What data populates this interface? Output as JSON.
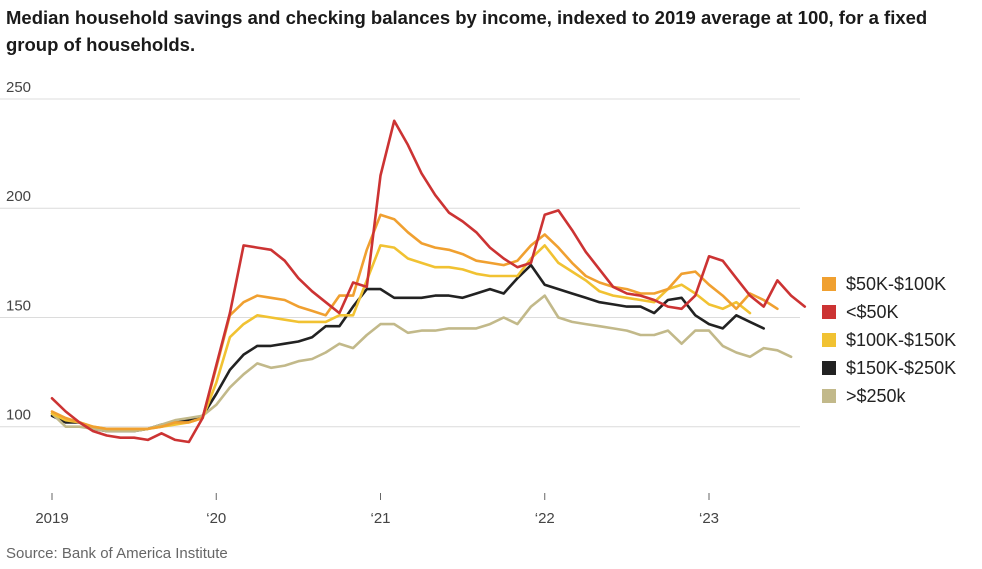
{
  "title": "Median household savings and checking balances by income, indexed to 2019 average at 100, for a fixed group of households.",
  "source": "Source: Bank of America Institute",
  "chart_data": {
    "type": "line",
    "title": "Median household savings and checking balances by income, indexed to 2019 average at 100, for a fixed group of households.",
    "xlabel": "",
    "ylabel": "",
    "xlim": [
      2019,
      2023.6
    ],
    "ylim": [
      77,
      250
    ],
    "yticks": [
      100,
      150,
      200,
      250
    ],
    "xticks": [
      {
        "value": 2019,
        "label": "2019"
      },
      {
        "value": 2020,
        "label": "‘20"
      },
      {
        "value": 2021,
        "label": "‘21"
      },
      {
        "value": 2022,
        "label": "‘22"
      },
      {
        "value": 2023,
        "label": "‘23"
      }
    ],
    "x_step": 0.08333,
    "grid": true,
    "legend_position": "right",
    "series": [
      {
        "name": "$150K-$250K",
        "color": "#222222",
        "values": [
          105,
          102,
          102,
          99,
          98,
          98,
          98,
          99,
          101,
          102,
          103,
          105,
          115,
          126,
          133,
          137,
          137,
          138,
          139,
          141,
          146,
          146,
          155,
          163,
          163,
          159,
          159,
          159,
          160,
          160,
          159,
          161,
          163,
          161,
          168,
          174,
          165,
          163,
          161,
          159,
          157,
          156,
          155,
          155,
          152,
          158,
          159,
          151,
          147,
          145,
          151,
          148,
          145
        ]
      },
      {
        "name": ">$250k",
        "color": "#c2b98a",
        "values": [
          106,
          100,
          100,
          99,
          98,
          98,
          98,
          99,
          101,
          103,
          104,
          105,
          110,
          118,
          124,
          129,
          127,
          128,
          130,
          131,
          134,
          138,
          136,
          142,
          147,
          147,
          143,
          144,
          144,
          145,
          145,
          145,
          147,
          150,
          147,
          155,
          160,
          150,
          148,
          147,
          146,
          145,
          144,
          142,
          142,
          144,
          138,
          144,
          144,
          137,
          134,
          132,
          136,
          135,
          132
        ]
      },
      {
        "name": "$100K-$150K",
        "color": "#f1c232",
        "values": [
          106,
          103,
          102,
          100,
          99,
          99,
          99,
          99,
          100,
          101,
          102,
          104,
          120,
          141,
          147,
          151,
          150,
          149,
          148,
          148,
          148,
          151,
          151,
          167,
          183,
          182,
          177,
          175,
          173,
          173,
          172,
          170,
          169,
          169,
          169,
          177,
          183,
          175,
          171,
          167,
          162,
          160,
          159,
          158,
          157,
          163,
          165,
          161,
          156,
          154,
          157,
          152
        ]
      },
      {
        "name": "$50K-$100K",
        "color": "#f0a030",
        "values": [
          107,
          104,
          102,
          100,
          99,
          99,
          99,
          99,
          100,
          102,
          102,
          104,
          127,
          151,
          157,
          160,
          159,
          158,
          155,
          153,
          151,
          160,
          160,
          181,
          197,
          195,
          189,
          184,
          182,
          181,
          179,
          176,
          175,
          174,
          176,
          183,
          188,
          182,
          175,
          169,
          166,
          164,
          163,
          161,
          161,
          163,
          170,
          171,
          165,
          160,
          154,
          161,
          158,
          154
        ]
      },
      {
        "name": "<$50K",
        "color": "#cc3333",
        "values": [
          113,
          107,
          102,
          98,
          96,
          95,
          95,
          94,
          97,
          94,
          93,
          104,
          128,
          152,
          183,
          182,
          181,
          176,
          168,
          162,
          157,
          152,
          166,
          164,
          215,
          240,
          229,
          216,
          206,
          198,
          194,
          189,
          182,
          177,
          173,
          175,
          197,
          199,
          190,
          180,
          172,
          164,
          161,
          160,
          158,
          155,
          154,
          160,
          178,
          176,
          168,
          160,
          155,
          167,
          160,
          155
        ]
      }
    ],
    "legend_order": [
      "$50K-$100K",
      "<$50K",
      "$100K-$150K",
      "$150K-$250K",
      ">$250k"
    ]
  }
}
